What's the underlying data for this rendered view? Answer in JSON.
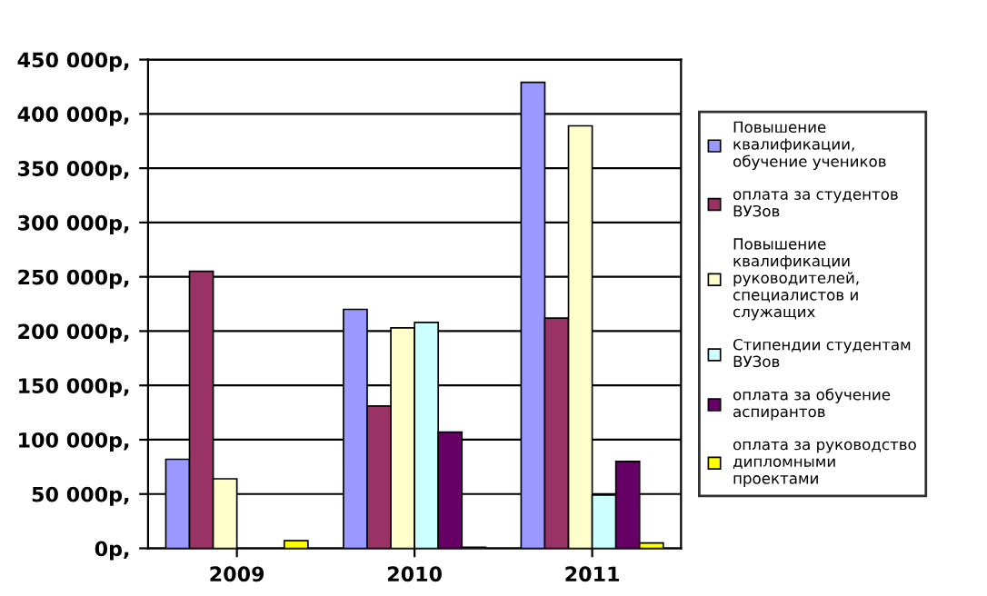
{
  "chart_data": {
    "type": "bar",
    "categories": [
      "2009",
      "2010",
      "2011"
    ],
    "series": [
      {
        "name": "Повышение\nквалификации,\nобучение учеников",
        "color": "#9999ff",
        "values": [
          82000,
          220000,
          429000
        ]
      },
      {
        "name": "оплата за студентов\nВУЗов",
        "color": "#993366",
        "values": [
          255000,
          131000,
          212000
        ]
      },
      {
        "name": "Повышение\nквалификации\nруководителей,\nспециалистов и\nслужащих",
        "color": "#ffffcc",
        "values": [
          64000,
          203000,
          389000
        ]
      },
      {
        "name": "Стипендии студентам\nВУЗов",
        "color": "#ccffff",
        "values": [
          null,
          208000,
          49000
        ]
      },
      {
        "name": "оплата за обучение\nаспирантов",
        "color": "#660066",
        "values": [
          null,
          107000,
          80000
        ]
      },
      {
        "name": "оплата за руководство\nдипломными\nпроектами",
        "color": "#ffff00",
        "values": [
          7000,
          1000,
          5000
        ]
      }
    ],
    "ylim": [
      0,
      450000
    ],
    "yticks": [
      {
        "value": 0,
        "label": "0р,"
      },
      {
        "value": 50000,
        "label": "50 000р,"
      },
      {
        "value": 100000,
        "label": "100 000р,"
      },
      {
        "value": 150000,
        "label": "150 000р,"
      },
      {
        "value": 200000,
        "label": "200 000р,"
      },
      {
        "value": 250000,
        "label": "250 000р,"
      },
      {
        "value": 300000,
        "label": "300 000р,"
      },
      {
        "value": 350000,
        "label": "350 000р,"
      },
      {
        "value": 400000,
        "label": "400 000р,"
      },
      {
        "value": 450000,
        "label": "450 000р,"
      }
    ],
    "grid": "y",
    "legend": "right"
  }
}
